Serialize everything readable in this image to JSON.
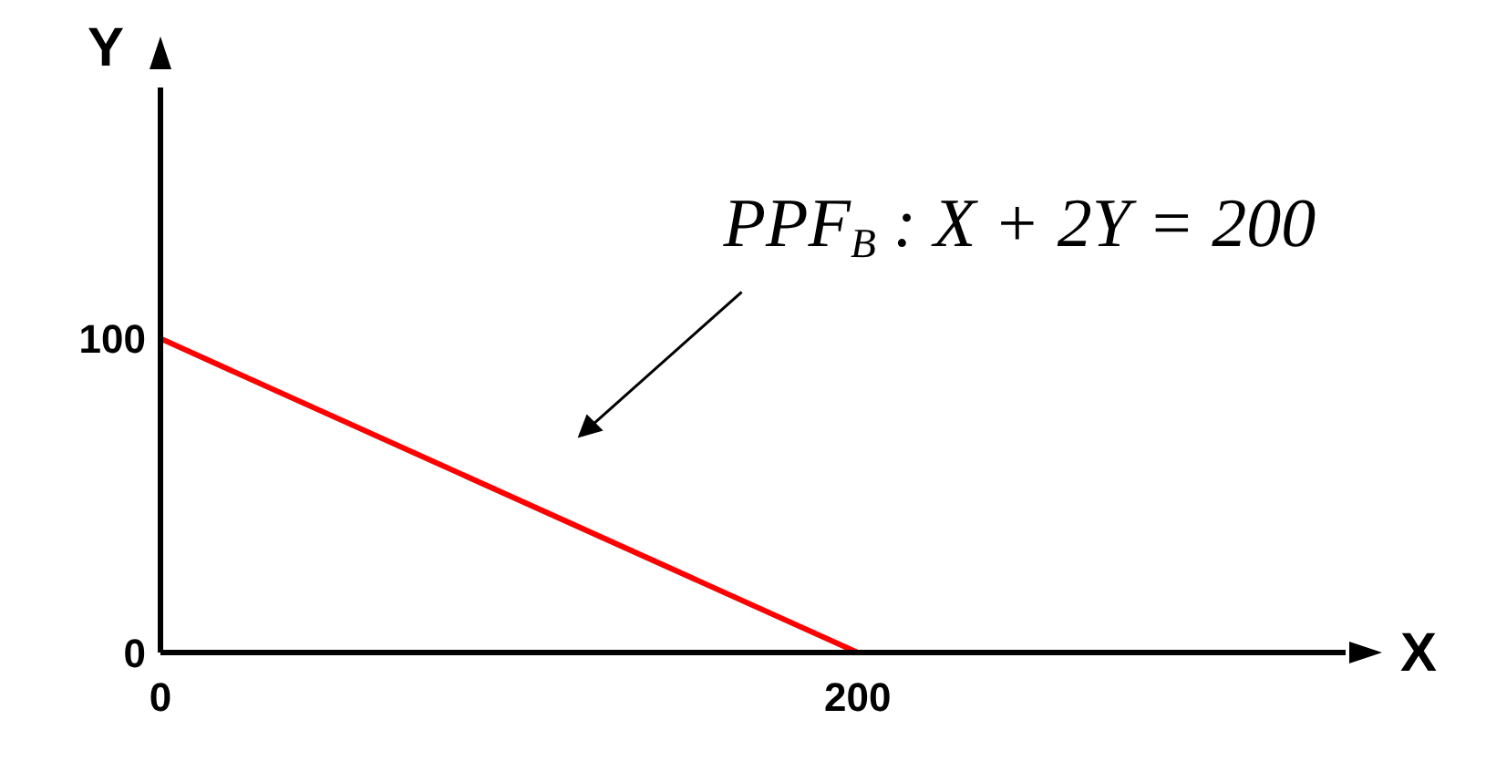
{
  "chart_data": {
    "type": "line",
    "xlabel": "X",
    "ylabel": "Y",
    "x": [
      0,
      200
    ],
    "series": [
      {
        "color": "#ff0000",
        "values": [
          100,
          0
        ]
      }
    ],
    "xlim": [
      0,
      340
    ],
    "xticks": [
      0,
      200
    ],
    "ylim": [
      0,
      180
    ],
    "yticks": [
      0,
      100
    ],
    "grid": false,
    "marker": "none",
    "line_style": "solid",
    "annotations": [
      "PPF$_{B}$ : X + 2Y = 200"
    ]
  }
}
